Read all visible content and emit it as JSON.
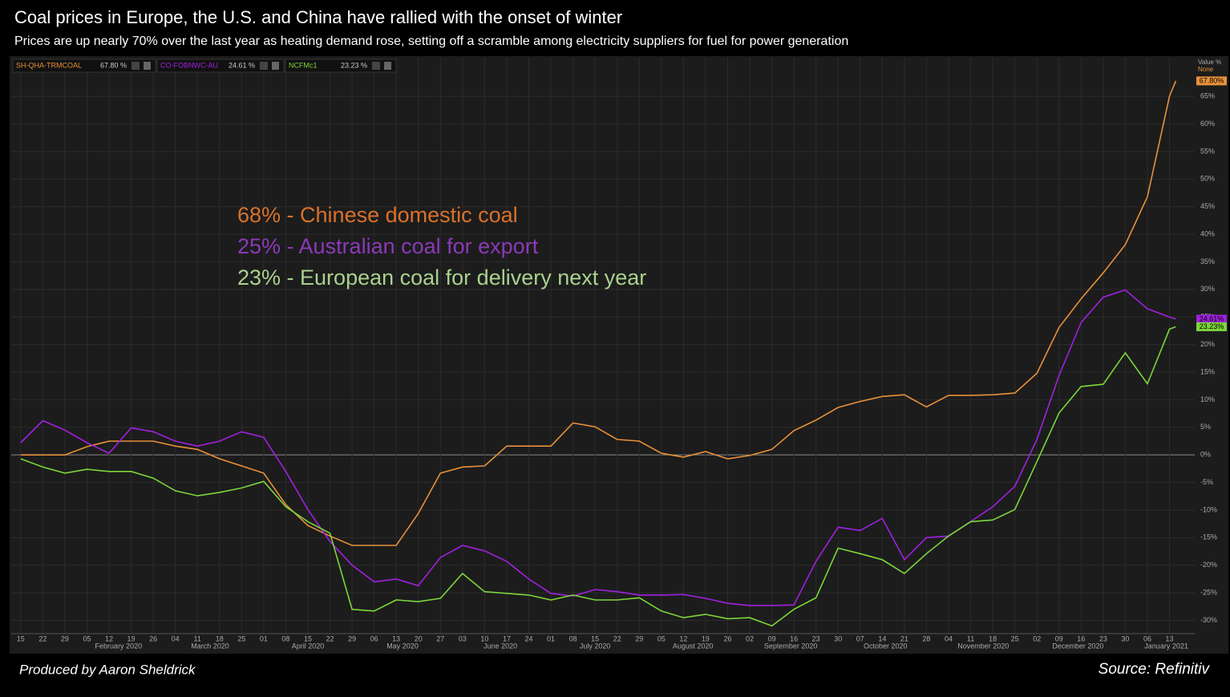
{
  "chart_data": {
    "type": "line",
    "title": "Coal prices in Europe, the U.S. and China have rallied with the onset of winter",
    "subtitle": "Prices are up nearly 70% over the last year as heating demand rose, setting off a scramble among electricity suppliers for fuel for power generation",
    "annotations": [
      {
        "text": "68% - Chinese domestic coal",
        "color": "#d9712b"
      },
      {
        "text": "25% - Australian coal for export",
        "color": "#8b3ab8"
      },
      {
        "text": "23% - European coal for delivery next year",
        "color": "#a9d18e"
      }
    ],
    "credit": "Produced by Aaron Sheldrick",
    "source": "Source: Refinitiv",
    "axis_header": "Value %",
    "axis_subheader": "None",
    "x": [
      "2020-01-15",
      "2020-01-22",
      "2020-01-29",
      "2020-02-05",
      "2020-02-12",
      "2020-02-19",
      "2020-02-26",
      "2020-03-04",
      "2020-03-11",
      "2020-03-18",
      "2020-03-25",
      "2020-04-01",
      "2020-04-08",
      "2020-04-15",
      "2020-04-22",
      "2020-04-29",
      "2020-05-06",
      "2020-05-13",
      "2020-05-20",
      "2020-05-27",
      "2020-06-03",
      "2020-06-10",
      "2020-06-17",
      "2020-06-24",
      "2020-07-01",
      "2020-07-08",
      "2020-07-15",
      "2020-07-22",
      "2020-07-29",
      "2020-08-05",
      "2020-08-12",
      "2020-08-19",
      "2020-08-26",
      "2020-09-02",
      "2020-09-09",
      "2020-09-16",
      "2020-09-23",
      "2020-09-30",
      "2020-10-07",
      "2020-10-14",
      "2020-10-21",
      "2020-10-28",
      "2020-11-04",
      "2020-11-11",
      "2020-11-18",
      "2020-11-25",
      "2020-12-02",
      "2020-12-09",
      "2020-12-16",
      "2020-12-23",
      "2020-12-30",
      "2021-01-06",
      "2021-01-13",
      "2021-01-15"
    ],
    "series": [
      {
        "name": "SH-QHA-TRMCOAL",
        "legend_label": "67.80 %",
        "end_label": "67.80%",
        "color": "#e8913a",
        "values": [
          0,
          0,
          0,
          1.5,
          2.5,
          2.5,
          2.5,
          1.6,
          1,
          -0.7,
          -2,
          -3.3,
          -9,
          -12.8,
          -14.7,
          -16.4,
          -16.4,
          -16.4,
          -10.6,
          -3.3,
          -2.2,
          -2,
          1.6,
          1.6,
          1.6,
          5.8,
          5.1,
          2.8,
          2.5,
          0.3,
          -0.4,
          0.6,
          -0.7,
          -0.1,
          1,
          4.4,
          6.3,
          8.6,
          9.7,
          10.6,
          10.9,
          8.7,
          10.8,
          10.8,
          10.9,
          11.2,
          14.8,
          23.1,
          28.3,
          33,
          38.1,
          46.8,
          65,
          67.8
        ]
      },
      {
        "name": "CO-FOBNWC-AU",
        "legend_label": "24.61 %",
        "end_label": "24.61%",
        "color": "#a020e0",
        "values": [
          2.2,
          6.2,
          4.5,
          2.2,
          0.3,
          4.9,
          4.2,
          2.5,
          1.6,
          2.5,
          4.2,
          3.2,
          -3,
          -9.9,
          -15.7,
          -20,
          -23,
          -22.5,
          -23.7,
          -18.6,
          -16.4,
          -17.4,
          -19.3,
          -22.5,
          -25.1,
          -25.6,
          -24.4,
          -24.8,
          -25.4,
          -25.4,
          -25.3,
          -26,
          -26.9,
          -27.3,
          -27.3,
          -27.2,
          -19.3,
          -13.1,
          -13.7,
          -11.5,
          -19,
          -15,
          -14.7,
          -12.1,
          -9.4,
          -5.7,
          2.8,
          14.4,
          24,
          28.6,
          29.9,
          26.5,
          25,
          24.61
        ]
      },
      {
        "name": "NCFMc1",
        "legend_label": "23.23 %",
        "end_label": "23.23%",
        "color": "#7cd63a",
        "values": [
          -0.7,
          -2.2,
          -3.3,
          -2.6,
          -3,
          -3,
          -4.2,
          -6.5,
          -7.4,
          -6.8,
          -6,
          -4.8,
          -9.4,
          -12.1,
          -14.2,
          -28,
          -28.3,
          -26.3,
          -26.6,
          -26,
          -21.5,
          -24.8,
          -25.1,
          -25.4,
          -26.3,
          -25.4,
          -26.3,
          -26.3,
          -25.9,
          -28.3,
          -29.5,
          -28.9,
          -29.7,
          -29.5,
          -31,
          -28,
          -25.9,
          -16.9,
          -17.9,
          -19,
          -21.5,
          -17.9,
          -14.7,
          -12.1,
          -11.8,
          -9.9,
          -1.2,
          7.6,
          12.4,
          12.8,
          18.5,
          12.9,
          22.8,
          23.23
        ]
      }
    ],
    "xlim": [
      "2020-01-12",
      "2021-01-21"
    ],
    "xticks": [
      {
        "value": "2020-01-15",
        "label": "15"
      },
      {
        "value": "2020-01-22",
        "label": "22"
      },
      {
        "value": "2020-01-29",
        "label": "29"
      },
      {
        "value": "2020-02-05",
        "label": "05"
      },
      {
        "value": "2020-02-12",
        "label": "12"
      },
      {
        "value": "2020-02-19",
        "label": "19"
      },
      {
        "value": "2020-02-26",
        "label": "26"
      },
      {
        "value": "2020-03-04",
        "label": "04"
      },
      {
        "value": "2020-03-11",
        "label": "11"
      },
      {
        "value": "2020-03-18",
        "label": "18"
      },
      {
        "value": "2020-03-25",
        "label": "25"
      },
      {
        "value": "2020-04-01",
        "label": "01"
      },
      {
        "value": "2020-04-08",
        "label": "08"
      },
      {
        "value": "2020-04-15",
        "label": "15"
      },
      {
        "value": "2020-04-22",
        "label": "22"
      },
      {
        "value": "2020-04-29",
        "label": "29"
      },
      {
        "value": "2020-05-06",
        "label": "06"
      },
      {
        "value": "2020-05-13",
        "label": "13"
      },
      {
        "value": "2020-05-20",
        "label": "20"
      },
      {
        "value": "2020-05-27",
        "label": "27"
      },
      {
        "value": "2020-06-03",
        "label": "03"
      },
      {
        "value": "2020-06-10",
        "label": "10"
      },
      {
        "value": "2020-06-17",
        "label": "17"
      },
      {
        "value": "2020-06-24",
        "label": "24"
      },
      {
        "value": "2020-07-01",
        "label": "01"
      },
      {
        "value": "2020-07-08",
        "label": "08"
      },
      {
        "value": "2020-07-15",
        "label": "15"
      },
      {
        "value": "2020-07-22",
        "label": "22"
      },
      {
        "value": "2020-07-29",
        "label": "29"
      },
      {
        "value": "2020-08-05",
        "label": "05"
      },
      {
        "value": "2020-08-12",
        "label": "12"
      },
      {
        "value": "2020-08-19",
        "label": "19"
      },
      {
        "value": "2020-08-26",
        "label": "26"
      },
      {
        "value": "2020-09-02",
        "label": "02"
      },
      {
        "value": "2020-09-09",
        "label": "09"
      },
      {
        "value": "2020-09-16",
        "label": "16"
      },
      {
        "value": "2020-09-23",
        "label": "23"
      },
      {
        "value": "2020-09-30",
        "label": "30"
      },
      {
        "value": "2020-10-07",
        "label": "07"
      },
      {
        "value": "2020-10-14",
        "label": "14"
      },
      {
        "value": "2020-10-21",
        "label": "21"
      },
      {
        "value": "2020-10-28",
        "label": "28"
      },
      {
        "value": "2020-11-04",
        "label": "04"
      },
      {
        "value": "2020-11-11",
        "label": "11"
      },
      {
        "value": "2020-11-18",
        "label": "18"
      },
      {
        "value": "2020-11-25",
        "label": "25"
      },
      {
        "value": "2020-12-02",
        "label": "02"
      },
      {
        "value": "2020-12-09",
        "label": "09"
      },
      {
        "value": "2020-12-16",
        "label": "16"
      },
      {
        "value": "2020-12-23",
        "label": "23"
      },
      {
        "value": "2020-12-30",
        "label": "30"
      },
      {
        "value": "2021-01-06",
        "label": "06"
      },
      {
        "value": "2021-01-13",
        "label": "13"
      }
    ],
    "month_labels": [
      {
        "value": "2020-02-15",
        "label": "February 2020"
      },
      {
        "value": "2020-03-15",
        "label": "March 2020"
      },
      {
        "value": "2020-04-15",
        "label": "April 2020"
      },
      {
        "value": "2020-05-15",
        "label": "May 2020"
      },
      {
        "value": "2020-06-15",
        "label": "June 2020"
      },
      {
        "value": "2020-07-15",
        "label": "July 2020"
      },
      {
        "value": "2020-08-15",
        "label": "August 2020"
      },
      {
        "value": "2020-09-15",
        "label": "September 2020"
      },
      {
        "value": "2020-10-15",
        "label": "October 2020"
      },
      {
        "value": "2020-11-15",
        "label": "November 2020"
      },
      {
        "value": "2020-12-15",
        "label": "December 2020"
      },
      {
        "value": "2021-01-12",
        "label": "January 2021"
      }
    ],
    "ylim": [
      -32.4,
      72
    ],
    "yticks": [
      {
        "value": -30,
        "label": "-30%"
      },
      {
        "value": -25,
        "label": "-25%"
      },
      {
        "value": -20,
        "label": "-20%"
      },
      {
        "value": -15,
        "label": "-15%"
      },
      {
        "value": -10,
        "label": "-10%"
      },
      {
        "value": -5,
        "label": "-5%"
      },
      {
        "value": 0,
        "label": "0%"
      },
      {
        "value": 5,
        "label": "5%"
      },
      {
        "value": 10,
        "label": "10%"
      },
      {
        "value": 15,
        "label": "15%"
      },
      {
        "value": 20,
        "label": "20%"
      },
      {
        "value": 25,
        "label": "25%"
      },
      {
        "value": 30,
        "label": "30%"
      },
      {
        "value": 35,
        "label": "35%"
      },
      {
        "value": 40,
        "label": "40%"
      },
      {
        "value": 45,
        "label": "45%"
      },
      {
        "value": 50,
        "label": "50%"
      },
      {
        "value": 55,
        "label": "55%"
      },
      {
        "value": 60,
        "label": "60%"
      },
      {
        "value": 65,
        "label": "65%"
      }
    ],
    "grid": true
  }
}
